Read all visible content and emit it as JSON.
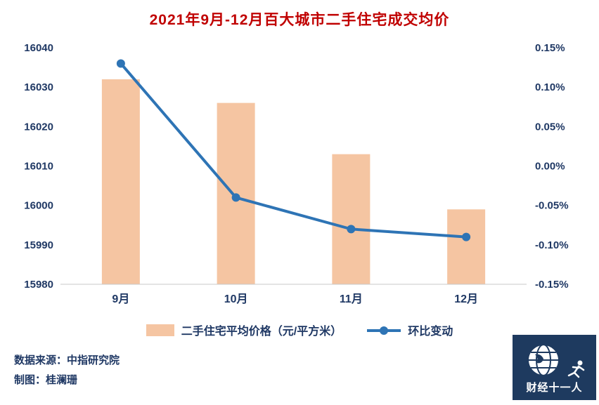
{
  "title": "2021年9月-12月百大城市二手住宅成交均价",
  "chart_data": {
    "type": "bar+line",
    "categories": [
      "9月",
      "10月",
      "11月",
      "12月"
    ],
    "series": [
      {
        "name": "二手住宅平均价格（元/平方米）",
        "type": "bar",
        "axis": "left",
        "values": [
          16032,
          16026,
          16013,
          15999
        ],
        "color": "#f5c5a2"
      },
      {
        "name": "环比变动",
        "type": "line",
        "axis": "right",
        "values": [
          0.13,
          -0.04,
          -0.08,
          -0.09
        ],
        "color": "#2e74b5"
      }
    ],
    "left_axis": {
      "min": 15980,
      "max": 16040,
      "step": 10
    },
    "right_axis": {
      "min": -0.15,
      "max": 0.15,
      "step": 0.05,
      "suffix": "%",
      "decimals": 2
    },
    "grid": false,
    "legend_position": "bottom"
  },
  "footer": {
    "source": "数据来源：中指研究院",
    "author": "制图：桂澜珊"
  },
  "logo": {
    "text": "财经十一人"
  },
  "colors": {
    "title": "#c00000",
    "axis_text": "#1f3864",
    "bar": "#f5c5a2",
    "line": "#2e74b5",
    "axis_line": "#c9c9c9",
    "logo_background": "#1e3a5f"
  }
}
